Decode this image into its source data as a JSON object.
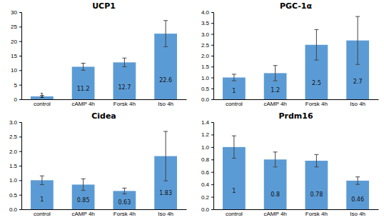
{
  "chart_data": [
    {
      "type": "bar",
      "title": "UCP1",
      "categories": [
        "control",
        "cAMP 4h",
        "Forsk 4h",
        "Iso 4h"
      ],
      "values": [
        1,
        11.2,
        12.7,
        22.6
      ],
      "errors": [
        0.3,
        1.2,
        1.5,
        4.5
      ],
      "color": "#5b9bd5",
      "ylim": [
        0,
        30
      ],
      "yticks": [
        0,
        5,
        10,
        15,
        20,
        25,
        30
      ],
      "data_labels": true,
      "grid": false
    },
    {
      "type": "bar",
      "title": "PGC-1α",
      "categories": [
        "control",
        "cAMP 4h",
        "Forsk 4h",
        "Iso 4h"
      ],
      "values": [
        1,
        1.2,
        2.5,
        2.7
      ],
      "errors": [
        0.15,
        0.35,
        0.7,
        1.1
      ],
      "color": "#5b9bd5",
      "ylim": [
        0,
        4
      ],
      "yticks": [
        {
          "value": 0,
          "label": "0.0"
        },
        0.5,
        {
          "value": 1,
          "label": "1.0"
        },
        1.5,
        {
          "value": 2,
          "label": "2.0"
        },
        2.5,
        {
          "value": 3,
          "label": "3.0"
        },
        3.5,
        {
          "value": 4,
          "label": "4.0"
        }
      ],
      "data_labels": true,
      "grid": false
    },
    {
      "type": "bar",
      "title": "Cidea",
      "categories": [
        "control",
        "cAMP 4h",
        "Forsk 4h",
        "Iso 4h"
      ],
      "values": [
        1,
        0.85,
        0.63,
        1.83
      ],
      "errors": [
        0.15,
        0.2,
        0.1,
        0.85
      ],
      "color": "#5b9bd5",
      "ylim": [
        0,
        3
      ],
      "yticks": [
        {
          "value": 0,
          "label": "0.0"
        },
        0.5,
        {
          "value": 1,
          "label": "1.0"
        },
        1.5,
        {
          "value": 2,
          "label": "2.0"
        },
        2.5,
        {
          "value": 3,
          "label": "3.0"
        }
      ],
      "data_labels": true,
      "grid": false
    },
    {
      "type": "bar",
      "title": "Prdm16",
      "categories": [
        "control",
        "cAMP 4h",
        "Forsk 4h",
        "Iso 4h"
      ],
      "values": [
        1,
        0.8,
        0.78,
        0.46
      ],
      "errors": [
        0.18,
        0.12,
        0.1,
        0.06
      ],
      "color": "#5b9bd5",
      "ylim": [
        0,
        1.4
      ],
      "yticks": [
        {
          "value": 0,
          "label": "0.0"
        },
        0.2,
        0.4,
        0.6,
        0.8,
        {
          "value": 1,
          "label": "1.0"
        },
        1.2,
        1.4
      ],
      "data_labels": true,
      "grid": false
    }
  ]
}
